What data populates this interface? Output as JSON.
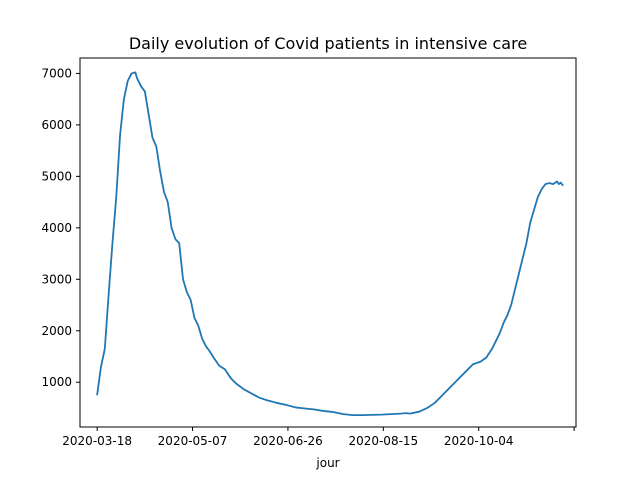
{
  "chart_data": {
    "type": "line",
    "title": "Daily evolution of Covid patients in intensive care",
    "xlabel": "jour",
    "ylabel": "",
    "xlim": [
      "2020-03-09",
      "2020-11-24"
    ],
    "ylim": [
      130,
      7300
    ],
    "x_ticks": [
      "2020-03-18",
      "2020-05-07",
      "2020-06-26",
      "2020-08-15",
      "2020-10-04",
      "2020-11-23"
    ],
    "x_tick_labels": [
      "2020-03-18",
      "2020-05-07",
      "2020-06-26",
      "2020-08-15",
      "2020-10-04",
      ""
    ],
    "y_ticks": [
      1000,
      2000,
      3000,
      4000,
      5000,
      6000,
      7000
    ],
    "y_tick_labels": [
      "1000",
      "2000",
      "3000",
      "4000",
      "5000",
      "6000",
      "7000"
    ],
    "grid": false,
    "legend": "none",
    "colors": {
      "line": "#1f77b4",
      "axes": "#000000",
      "background": "#ffffff"
    },
    "series": [
      {
        "x": [
          "2020-03-18",
          "2020-03-20",
          "2020-03-22",
          "2020-03-24",
          "2020-03-26",
          "2020-03-28",
          "2020-03-30",
          "2020-04-01",
          "2020-04-03",
          "2020-04-05",
          "2020-04-07",
          "2020-04-08",
          "2020-04-10",
          "2020-04-12",
          "2020-04-14",
          "2020-04-16",
          "2020-04-18",
          "2020-04-20",
          "2020-04-22",
          "2020-04-24",
          "2020-04-26",
          "2020-04-28",
          "2020-04-30",
          "2020-05-02",
          "2020-05-04",
          "2020-05-06",
          "2020-05-08",
          "2020-05-10",
          "2020-05-12",
          "2020-05-14",
          "2020-05-16",
          "2020-05-18",
          "2020-05-21",
          "2020-05-24",
          "2020-05-27",
          "2020-05-30",
          "2020-06-03",
          "2020-06-07",
          "2020-06-11",
          "2020-06-15",
          "2020-06-20",
          "2020-06-25",
          "2020-06-30",
          "2020-07-05",
          "2020-07-10",
          "2020-07-15",
          "2020-07-20",
          "2020-07-25",
          "2020-07-30",
          "2020-08-04",
          "2020-08-09",
          "2020-08-14",
          "2020-08-19",
          "2020-08-24",
          "2020-08-27",
          "2020-08-29",
          "2020-09-03",
          "2020-09-07",
          "2020-09-11",
          "2020-09-15",
          "2020-09-19",
          "2020-09-23",
          "2020-09-27",
          "2020-10-01",
          "2020-10-05",
          "2020-10-08",
          "2020-10-11",
          "2020-10-13",
          "2020-10-15",
          "2020-10-17",
          "2020-10-19",
          "2020-10-21",
          "2020-10-23",
          "2020-10-25",
          "2020-10-27",
          "2020-10-29",
          "2020-10-31",
          "2020-11-02",
          "2020-11-04",
          "2020-11-06",
          "2020-11-08",
          "2020-11-10",
          "2020-11-12",
          "2020-11-14",
          "2020-11-15",
          "2020-11-16",
          "2020-11-17"
        ],
        "values": [
          760,
          1300,
          1650,
          2700,
          3700,
          4600,
          5800,
          6500,
          6850,
          7000,
          7020,
          6900,
          6750,
          6650,
          6200,
          5750,
          5580,
          5100,
          4700,
          4500,
          4000,
          3780,
          3700,
          3000,
          2750,
          2600,
          2250,
          2100,
          1850,
          1700,
          1600,
          1480,
          1320,
          1250,
          1080,
          970,
          860,
          780,
          700,
          650,
          600,
          560,
          510,
          490,
          470,
          440,
          420,
          380,
          360,
          360,
          365,
          370,
          380,
          390,
          400,
          390,
          430,
          500,
          600,
          750,
          900,
          1050,
          1200,
          1350,
          1400,
          1480,
          1650,
          1800,
          1950,
          2150,
          2300,
          2500,
          2800,
          3100,
          3400,
          3700,
          4100,
          4350,
          4600,
          4750,
          4850,
          4870,
          4850,
          4900,
          4850,
          4880,
          4830
        ]
      }
    ]
  }
}
